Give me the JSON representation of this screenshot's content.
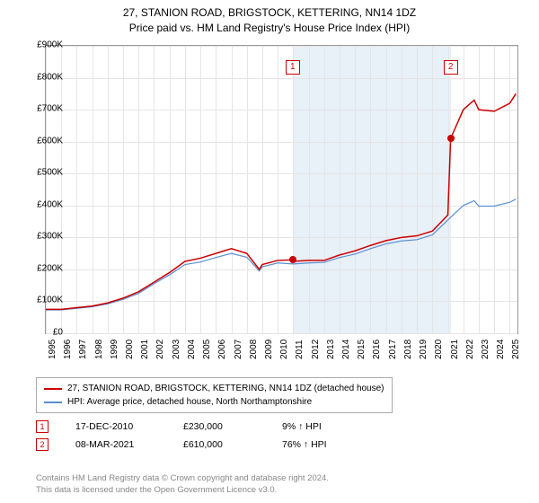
{
  "title_line1": "27, STANION ROAD, BRIGSTOCK, KETTERING, NN14 1DZ",
  "title_line2": "Price paid vs. HM Land Registry's House Price Index (HPI)",
  "chart": {
    "type": "line",
    "background_color": "#ffffff",
    "grid_color": "#e5e5e5",
    "axis_color": "#999999",
    "shaded_region_color": "#e8f0f8",
    "shaded_region_opacity": 1,
    "ylim": [
      0,
      900000
    ],
    "ytick_step": 100000,
    "ytick_labels": [
      "£0",
      "£100K",
      "£200K",
      "£300K",
      "£400K",
      "£500K",
      "£600K",
      "£700K",
      "£800K",
      "£900K"
    ],
    "xlim": [
      1995,
      2025.5
    ],
    "xtick_step": 1,
    "xtick_labels": [
      "1995",
      "1996",
      "1997",
      "1998",
      "1999",
      "2000",
      "2001",
      "2002",
      "2003",
      "2004",
      "2005",
      "2006",
      "2007",
      "2008",
      "2009",
      "2010",
      "2011",
      "2012",
      "2013",
      "2014",
      "2015",
      "2016",
      "2017",
      "2018",
      "2019",
      "2020",
      "2021",
      "2022",
      "2023",
      "2024",
      "2025"
    ],
    "xtick_rotation": -90,
    "label_fontsize": 10,
    "series": [
      {
        "name": "property",
        "label": "27, STANION ROAD, BRIGSTOCK, KETTERING, NN14 1DZ (detached house)",
        "color": "#cc0000",
        "line_width": 1.5,
        "x": [
          1995,
          1996,
          1997,
          1998,
          1999,
          2000,
          2001,
          2002,
          2003,
          2004,
          2005,
          2006,
          2007,
          2008,
          2008.8,
          2009,
          2010,
          2010.96,
          2011,
          2012,
          2013,
          2014,
          2015,
          2016,
          2017,
          2018,
          2019,
          2020,
          2021,
          2021.18,
          2022,
          2022.7,
          2023,
          2024,
          2025,
          2025.4
        ],
        "y": [
          75000,
          75000,
          80000,
          85000,
          95000,
          110000,
          130000,
          160000,
          190000,
          225000,
          235000,
          250000,
          265000,
          250000,
          200000,
          215000,
          228000,
          230000,
          225000,
          228000,
          228000,
          245000,
          258000,
          275000,
          290000,
          300000,
          305000,
          320000,
          370000,
          610000,
          700000,
          730000,
          700000,
          695000,
          720000,
          750000
        ]
      },
      {
        "name": "hpi",
        "label": "HPI: Average price, detached house, North Northamptonshire",
        "color": "#5b8fd0",
        "line_width": 1.2,
        "x": [
          1995,
          1996,
          1997,
          1998,
          1999,
          2000,
          2001,
          2002,
          2003,
          2004,
          2005,
          2006,
          2007,
          2008,
          2008.8,
          2009,
          2010,
          2011,
          2012,
          2013,
          2014,
          2015,
          2016,
          2017,
          2018,
          2019,
          2020,
          2021,
          2022,
          2022.7,
          2023,
          2024,
          2025,
          2025.4
        ],
        "y": [
          73000,
          73000,
          78000,
          83000,
          92000,
          106000,
          125000,
          155000,
          183000,
          215000,
          223000,
          237000,
          250000,
          238000,
          195000,
          208000,
          220000,
          217000,
          220000,
          222000,
          237000,
          248000,
          265000,
          280000,
          289000,
          293000,
          308000,
          355000,
          400000,
          415000,
          398000,
          398000,
          410000,
          420000
        ]
      }
    ],
    "markers": [
      {
        "num": "1",
        "x": 2010.96,
        "y": 230000,
        "box_y": 855000
      },
      {
        "num": "2",
        "x": 2021.18,
        "y": 610000,
        "box_y": 855000
      }
    ],
    "shaded_region_x": [
      2010.96,
      2021.18
    ]
  },
  "legend": {
    "items": [
      {
        "color": "#cc0000",
        "label": "27, STANION ROAD, BRIGSTOCK, KETTERING, NN14 1DZ (detached house)"
      },
      {
        "color": "#5b8fd0",
        "label": "HPI: Average price, detached house, North Northamptonshire"
      }
    ]
  },
  "sales": [
    {
      "num": "1",
      "date": "17-DEC-2010",
      "price": "£230,000",
      "delta": "9% ↑ HPI"
    },
    {
      "num": "2",
      "date": "08-MAR-2021",
      "price": "£610,000",
      "delta": "76% ↑ HPI"
    }
  ],
  "footer_line1": "Contains HM Land Registry data © Crown copyright and database right 2024.",
  "footer_line2": "This data is licensed under the Open Government Licence v3.0."
}
